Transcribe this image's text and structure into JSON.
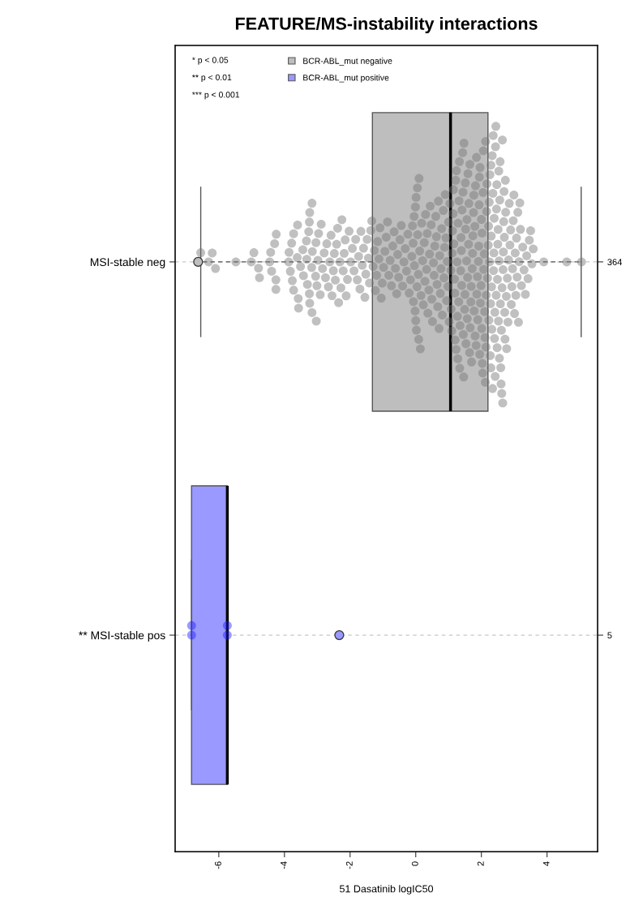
{
  "chart_data": {
    "type": "box",
    "orientation": "horizontal",
    "title": "FEATURE/MS-instability interactions",
    "xlabel": "51 Dasatinib logIC50",
    "categories": [
      "MSI-stable neg",
      "** MSI-stable pos"
    ],
    "y2_categories": [
      "364",
      "5"
    ],
    "xlim": [
      -7.33,
      5.54
    ],
    "xticks": [
      -6,
      -4,
      -2,
      0,
      2,
      4
    ],
    "grid": "y",
    "legend": "top left",
    "annotations": [
      "* p < 0.05",
      "** p < 0.01",
      "*** p < 0.001"
    ],
    "series": [
      {
        "name": "BCR-ABL_mut negative",
        "color": "#bebebe",
        "boxes": [
          {
            "low": -6.55,
            "q1": -1.32,
            "median": 1.06,
            "q3": 2.2,
            "high": 5.04,
            "outliers": [
              -6.63
            ]
          },
          null
        ]
      },
      {
        "name": "BCR-ABL_mut positive",
        "color": "#9999ff",
        "boxes": [
          null,
          {
            "low": -6.83,
            "q1": -6.83,
            "median": -5.74,
            "q3": -5.74,
            "high": -5.74,
            "outliers": [
              -2.33
            ]
          }
        ]
      },
      {
        "type": "scatter",
        "color": "#c0c0c0",
        "x": [
          "MSI-stable neg",
          "MSI-stable neg",
          "MSI-stable neg",
          "MSI-stable neg",
          "MSI-stable neg",
          "MSI-stable neg",
          "MSI-stable neg",
          "MSI-stable neg",
          "MSI-stable neg",
          "MSI-stable neg",
          "MSI-stable neg",
          "MSI-stable neg",
          "MSI-stable neg",
          "MSI-stable neg",
          "MSI-stable neg",
          "MSI-stable neg",
          "MSI-stable neg",
          "MSI-stable neg",
          "MSI-stable neg",
          "MSI-stable neg",
          "MSI-stable neg",
          "MSI-stable neg",
          "MSI-stable neg",
          "MSI-stable neg",
          "MSI-stable neg",
          "MSI-stable neg",
          "MSI-stable neg",
          "MSI-stable neg",
          "MSI-stable neg",
          "MSI-stable neg",
          "MSI-stable neg",
          "MSI-stable neg",
          "MSI-stable neg",
          "MSI-stable neg",
          "MSI-stable neg",
          "MSI-stable neg",
          "MSI-stable neg",
          "MSI-stable neg",
          "MSI-stable neg",
          "MSI-stable neg",
          "MSI-stable neg",
          "MSI-stable neg",
          "MSI-stable neg",
          "MSI-stable neg",
          "MSI-stable neg",
          "MSI-stable neg",
          "MSI-stable neg",
          "MSI-stable neg",
          "MSI-stable neg",
          "MSI-stable neg",
          "MSI-stable neg",
          "MSI-stable neg",
          "MSI-stable neg",
          "MSI-stable neg",
          "MSI-stable neg",
          "MSI-stable neg",
          "MSI-stable neg",
          "MSI-stable neg",
          "MSI-stable neg",
          "MSI-stable neg",
          "MSI-stable neg",
          "MSI-stable neg",
          "MSI-stable neg",
          "MSI-stable neg",
          "MSI-stable neg",
          "MSI-stable neg",
          "MSI-stable neg",
          "MSI-stable neg",
          "MSI-stable neg",
          "MSI-stable neg",
          "MSI-stable neg",
          "MSI-stable neg",
          "MSI-stable neg",
          "MSI-stable neg",
          "MSI-stable neg",
          "MSI-stable neg",
          "MSI-stable neg",
          "MSI-stable neg",
          "MSI-stable neg",
          "MSI-stable neg",
          "MSI-stable neg",
          "MSI-stable neg",
          "MSI-stable neg",
          "MSI-stable neg",
          "MSI-stable neg",
          "MSI-stable neg",
          "MSI-stable neg",
          "MSI-stable neg",
          "MSI-stable neg",
          "MSI-stable neg",
          "MSI-stable neg",
          "MSI-stable neg",
          "MSI-stable neg",
          "MSI-stable neg",
          "MSI-stable neg",
          "MSI-stable neg",
          "MSI-stable neg",
          "MSI-stable neg",
          "MSI-stable neg",
          "MSI-stable neg",
          "MSI-stable neg",
          "MSI-stable neg",
          "MSI-stable neg",
          "MSI-stable neg",
          "MSI-stable neg",
          "MSI-stable neg",
          "MSI-stable neg",
          "MSI-stable neg",
          "MSI-stable neg",
          "MSI-stable neg",
          "MSI-stable neg",
          "MSI-stable neg",
          "MSI-stable neg",
          "MSI-stable neg",
          "MSI-stable neg",
          "MSI-stable neg",
          "MSI-stable neg",
          "MSI-stable neg",
          "MSI-stable neg",
          "MSI-stable neg",
          "MSI-stable neg",
          "MSI-stable neg",
          "MSI-stable neg",
          "MSI-stable neg",
          "MSI-stable neg",
          "MSI-stable neg",
          "MSI-stable neg",
          "MSI-stable neg",
          "MSI-stable neg",
          "MSI-stable neg",
          "MSI-stable neg",
          "MSI-stable neg",
          "MSI-stable neg",
          "MSI-stable neg",
          "MSI-stable neg",
          "MSI-stable neg",
          "MSI-stable neg",
          "MSI-stable neg",
          "MSI-stable neg",
          "MSI-stable neg",
          "MSI-stable neg",
          "MSI-stable neg",
          "MSI-stable neg",
          "MSI-stable neg",
          "MSI-stable neg",
          "MSI-stable neg",
          "MSI-stable neg",
          "MSI-stable neg",
          "MSI-stable neg",
          "MSI-stable neg",
          "MSI-stable neg",
          "MSI-stable neg",
          "MSI-stable neg",
          "MSI-stable neg",
          "MSI-stable neg",
          "MSI-stable neg",
          "MSI-stable neg",
          "MSI-stable neg",
          "MSI-stable neg",
          "MSI-stable neg",
          "MSI-stable neg",
          "MSI-stable neg",
          "MSI-stable neg",
          "MSI-stable neg",
          "MSI-stable neg",
          "MSI-stable neg",
          "MSI-stable neg",
          "MSI-stable neg",
          "MSI-stable neg",
          "MSI-stable neg",
          "MSI-stable neg",
          "MSI-stable neg",
          "MSI-stable neg",
          "MSI-stable neg",
          "MSI-stable neg",
          "MSI-stable neg",
          "MSI-stable neg",
          "MSI-stable neg",
          "MSI-stable neg",
          "MSI-stable neg",
          "MSI-stable neg",
          "MSI-stable neg",
          "MSI-stable neg",
          "MSI-stable neg",
          "MSI-stable neg",
          "MSI-stable neg",
          "MSI-stable neg",
          "MSI-stable neg",
          "MSI-stable neg",
          "MSI-stable neg",
          "MSI-stable neg",
          "MSI-stable neg",
          "MSI-stable neg",
          "MSI-stable neg",
          "MSI-stable neg",
          "MSI-stable neg",
          "MSI-stable neg",
          "MSI-stable neg",
          "MSI-stable neg",
          "MSI-stable neg",
          "MSI-stable neg",
          "MSI-stable neg",
          "MSI-stable neg",
          "MSI-stable neg",
          "MSI-stable neg",
          "MSI-stable neg",
          "MSI-stable neg",
          "MSI-stable neg",
          "MSI-stable neg",
          "MSI-stable neg",
          "MSI-stable neg",
          "MSI-stable neg",
          "MSI-stable neg",
          "MSI-stable neg",
          "MSI-stable neg",
          "MSI-stable neg",
          "MSI-stable neg",
          "MSI-stable neg",
          "MSI-stable neg",
          "MSI-stable neg",
          "MSI-stable neg",
          "MSI-stable neg",
          "MSI-stable neg",
          "MSI-stable neg",
          "MSI-stable neg",
          "MSI-stable neg",
          "MSI-stable neg",
          "MSI-stable neg",
          "MSI-stable neg",
          "MSI-stable neg",
          "MSI-stable neg",
          "MSI-stable neg",
          "MSI-stable neg",
          "MSI-stable neg",
          "MSI-stable neg",
          "MSI-stable neg",
          "MSI-stable neg",
          "MSI-stable neg",
          "MSI-stable neg",
          "MSI-stable neg",
          "MSI-stable neg",
          "MSI-stable neg",
          "MSI-stable neg",
          "MSI-stable neg",
          "MSI-stable neg",
          "MSI-stable neg",
          "MSI-stable neg",
          "MSI-stable neg",
          "MSI-stable neg",
          "MSI-stable neg",
          "MSI-stable neg",
          "MSI-stable neg",
          "MSI-stable neg",
          "MSI-stable neg",
          "MSI-stable neg",
          "MSI-stable neg",
          "MSI-stable neg",
          "MSI-stable neg",
          "MSI-stable neg",
          "MSI-stable neg",
          "MSI-stable neg",
          "MSI-stable neg",
          "MSI-stable neg",
          "MSI-stable neg",
          "MSI-stable neg",
          "MSI-stable neg",
          "MSI-stable neg",
          "MSI-stable neg",
          "MSI-stable neg",
          "MSI-stable neg",
          "MSI-stable neg",
          "MSI-stable neg",
          "MSI-stable neg",
          "MSI-stable neg",
          "MSI-stable neg",
          "MSI-stable neg",
          "MSI-stable neg",
          "MSI-stable neg",
          "MSI-stable neg",
          "MSI-stable neg",
          "MSI-stable neg",
          "MSI-stable neg",
          "MSI-stable neg",
          "MSI-stable neg",
          "MSI-stable neg",
          "MSI-stable neg",
          "MSI-stable neg",
          "MSI-stable neg",
          "MSI-stable neg",
          "MSI-stable neg",
          "MSI-stable neg",
          "MSI-stable neg",
          "MSI-stable neg",
          "MSI-stable neg",
          "MSI-stable neg",
          "MSI-stable neg",
          "MSI-stable neg",
          "MSI-stable neg",
          "MSI-stable neg",
          "MSI-stable neg",
          "MSI-stable neg",
          "MSI-stable neg",
          "MSI-stable neg",
          "MSI-stable neg",
          "MSI-stable neg",
          "MSI-stable neg",
          "MSI-stable neg",
          "MSI-stable neg",
          "MSI-stable neg",
          "MSI-stable neg",
          "MSI-stable neg",
          "MSI-stable neg",
          "MSI-stable neg",
          "MSI-stable neg",
          "MSI-stable neg",
          "MSI-stable neg",
          "MSI-stable neg",
          "MSI-stable neg",
          "MSI-stable neg",
          "MSI-stable neg",
          "MSI-stable neg",
          "MSI-stable neg",
          "MSI-stable neg",
          "MSI-stable neg",
          "MSI-stable neg",
          "MSI-stable neg",
          "MSI-stable neg",
          "MSI-stable neg",
          "MSI-stable neg",
          "MSI-stable neg",
          "MSI-stable neg",
          "MSI-stable neg",
          "MSI-stable neg",
          "MSI-stable neg",
          "MSI-stable neg",
          "MSI-stable neg",
          "MSI-stable neg",
          "MSI-stable neg",
          "MSI-stable neg",
          "MSI-stable neg",
          "MSI-stable neg",
          "MSI-stable neg",
          "MSI-stable neg",
          "MSI-stable neg",
          "MSI-stable neg",
          "MSI-stable neg",
          "MSI-stable neg",
          "MSI-stable neg",
          "MSI-stable neg",
          "MSI-stable neg",
          "MSI-stable neg",
          "MSI-stable neg",
          "MSI-stable neg",
          "MSI-stable neg",
          "MSI-stable neg",
          "MSI-stable neg",
          "MSI-stable neg",
          "MSI-stable neg",
          "MSI-stable neg",
          "MSI-stable neg",
          "MSI-stable neg",
          "MSI-stable neg",
          "MSI-stable neg"
        ],
        "values": [
          -6.55,
          -6.31,
          -6.2,
          -6.1,
          -5.48,
          -5.01,
          -4.93,
          -4.79,
          -4.76,
          -4.45,
          -4.42,
          -4.39,
          -4.3,
          -4.26,
          -4.26,
          -4.25,
          -3.87,
          -3.86,
          -3.82,
          -3.78,
          -3.76,
          -3.72,
          -3.72,
          -3.61,
          -3.6,
          -3.58,
          -3.57,
          -3.51,
          -3.44,
          -3.42,
          -3.33,
          -3.32,
          -3.3,
          -3.26,
          -3.24,
          -3.24,
          -3.23,
          -3.23,
          -3.17,
          -3.16,
          -3.16,
          -3.15,
          -3.05,
          -3.04,
          -3.03,
          -3.01,
          -2.98,
          -2.96,
          -2.91,
          -2.88,
          -2.84,
          -2.79,
          -2.75,
          -2.71,
          -2.66,
          -2.62,
          -2.58,
          -2.55,
          -2.51,
          -2.48,
          -2.45,
          -2.41,
          -2.38,
          -2.35,
          -2.31,
          -2.28,
          -2.25,
          -2.21,
          -2.18,
          -2.15,
          -2.12,
          -2.08,
          -2.03,
          -1.98,
          -1.93,
          -1.88,
          -1.83,
          -1.78,
          -1.74,
          -1.7,
          -1.67,
          -1.63,
          -1.59,
          -1.55,
          -1.52,
          -1.48,
          -1.44,
          -1.41,
          -1.37,
          -1.34,
          -1.3,
          -1.26,
          -1.23,
          -1.19,
          -1.16,
          -1.12,
          -1.09,
          -1.05,
          -1.02,
          -0.98,
          -0.94,
          -0.9,
          -0.86,
          -0.82,
          -0.78,
          -0.74,
          -0.7,
          -0.66,
          -0.62,
          -0.58,
          -0.55,
          -0.52,
          -0.48,
          -0.44,
          -0.4,
          -0.36,
          -0.32,
          -0.28,
          -0.24,
          -0.2,
          -0.16,
          -0.12,
          -0.1,
          -0.08,
          -0.07,
          -0.05,
          -0.04,
          -0.02,
          -0.01,
          0.0,
          0.01,
          0.02,
          0.04,
          0.05,
          0.06,
          0.08,
          0.09,
          0.1,
          0.12,
          0.14,
          0.16,
          0.18,
          0.21,
          0.23,
          0.26,
          0.28,
          0.3,
          0.33,
          0.35,
          0.37,
          0.4,
          0.42,
          0.44,
          0.47,
          0.49,
          0.51,
          0.54,
          0.56,
          0.58,
          0.61,
          0.63,
          0.65,
          0.67,
          0.69,
          0.71,
          0.73,
          0.75,
          0.77,
          0.79,
          0.81,
          0.84,
          0.86,
          0.88,
          0.9,
          0.92,
          0.94,
          0.96,
          0.98,
          1.0,
          1.02,
          1.04,
          1.07,
          1.08,
          1.1,
          1.11,
          1.12,
          1.14,
          1.15,
          1.16,
          1.18,
          1.19,
          1.2,
          1.22,
          1.23,
          1.24,
          1.26,
          1.27,
          1.28,
          1.29,
          1.31,
          1.32,
          1.33,
          1.34,
          1.35,
          1.37,
          1.38,
          1.39,
          1.4,
          1.41,
          1.43,
          1.44,
          1.45,
          1.46,
          1.47,
          1.49,
          1.5,
          1.51,
          1.52,
          1.53,
          1.55,
          1.56,
          1.57,
          1.58,
          1.59,
          1.61,
          1.62,
          1.64,
          1.65,
          1.66,
          1.68,
          1.69,
          1.7,
          1.72,
          1.73,
          1.74,
          1.76,
          1.77,
          1.78,
          1.8,
          1.81,
          1.82,
          1.84,
          1.85,
          1.86,
          1.88,
          1.89,
          1.91,
          1.92,
          1.93,
          1.94,
          1.95,
          1.96,
          1.97,
          1.99,
          2.0,
          2.01,
          2.02,
          2.03,
          2.04,
          2.05,
          2.06,
          2.07,
          2.09,
          2.1,
          2.11,
          2.12,
          2.13,
          2.14,
          2.15,
          2.16,
          2.17,
          2.19,
          2.21,
          2.22,
          2.23,
          2.24,
          2.25,
          2.26,
          2.27,
          2.28,
          2.29,
          2.29,
          2.3,
          2.31,
          2.32,
          2.33,
          2.34,
          2.35,
          2.36,
          2.37,
          2.38,
          2.39,
          2.4,
          2.41,
          2.42,
          2.43,
          2.44,
          2.45,
          2.46,
          2.47,
          2.48,
          2.49,
          2.5,
          2.51,
          2.52,
          2.53,
          2.54,
          2.55,
          2.56,
          2.57,
          2.58,
          2.59,
          2.6,
          2.61,
          2.62,
          2.63,
          2.64,
          2.65,
          2.66,
          2.67,
          2.68,
          2.69,
          2.7,
          2.71,
          2.72,
          2.73,
          2.74,
          2.76,
          2.77,
          2.79,
          2.81,
          2.83,
          2.85,
          2.87,
          2.89,
          2.91,
          2.93,
          2.95,
          2.97,
          2.99,
          3.01,
          3.03,
          3.05,
          3.07,
          3.09,
          3.11,
          3.13,
          3.15,
          3.17,
          3.19,
          3.22,
          3.26,
          3.3,
          3.34,
          3.38,
          3.42,
          3.46,
          3.5,
          3.54,
          3.58,
          3.9,
          4.6,
          5.05
        ]
      },
      {
        "type": "scatter",
        "color": "#9999ff",
        "x": [
          "** MSI-stable pos",
          "** MSI-stable pos",
          "** MSI-stable pos",
          "** MSI-stable pos"
        ],
        "values": [
          -6.83,
          -6.83,
          -5.74,
          -5.74
        ]
      }
    ]
  }
}
